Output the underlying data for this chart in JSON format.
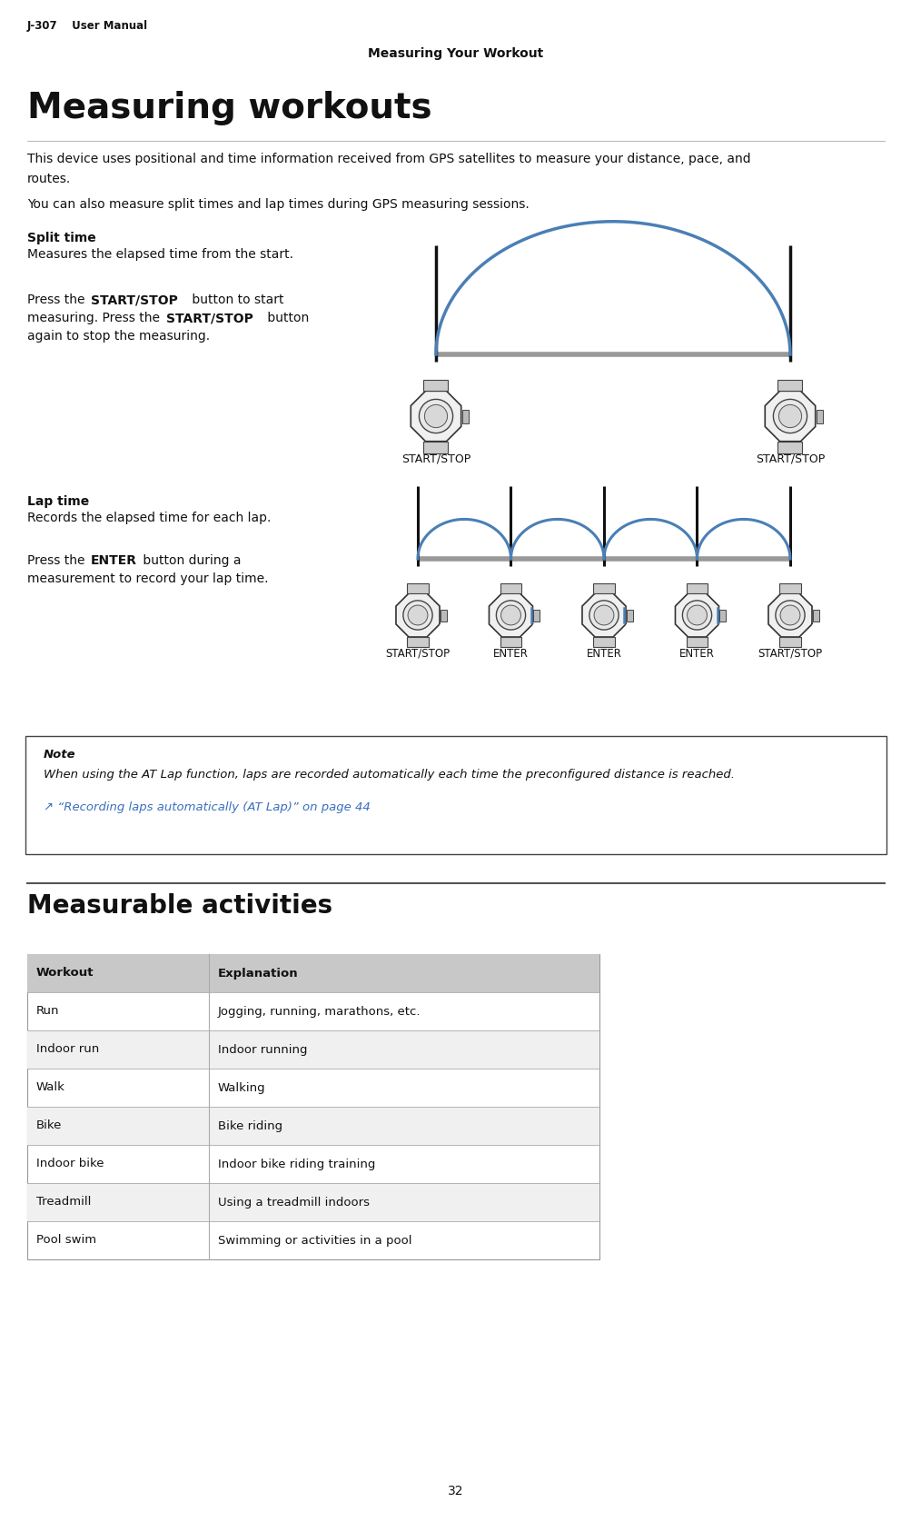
{
  "header_left": "J-307    User Manual",
  "header_center": "Measuring Your Workout",
  "page_title": "Measuring workouts",
  "body_text1": "This device uses positional and time information received from GPS satellites to measure your distance, pace, and",
  "body_text1b": "routes.",
  "body_text2": "You can also measure split times and lap times during GPS measuring sessions.",
  "split_time_heading": "Split time",
  "split_time_desc": "Measures the elapsed time from the start.",
  "split_press1": "Press the ",
  "split_press1b": "START/STOP",
  "split_press1c": " button to start",
  "split_press2": "measuring. Press the ",
  "split_press2b": "START/STOP",
  "split_press2c": " button",
  "split_press3": "again to stop the measuring.",
  "split_labels": [
    "START/STOP",
    "START/STOP"
  ],
  "lap_time_heading": "Lap time",
  "lap_time_desc": "Records the elapsed time for each lap.",
  "lap_press1": "Press the ",
  "lap_press1b": "ENTER",
  "lap_press1c": " button during a",
  "lap_press2": "measurement to record your lap time.",
  "lap_labels": [
    "START/STOP",
    "ENTER",
    "ENTER",
    "ENTER",
    "START/STOP"
  ],
  "note_title": "Note",
  "note_text": "When using the AT Lap function, laps are recorded automatically each time the preconfigured distance is reached.",
  "note_link": "↗ “Recording laps automatically (AT Lap)” on page 44",
  "activities_title": "Measurable activities",
  "table_headers": [
    "Workout",
    "Explanation"
  ],
  "table_rows": [
    [
      "Run",
      "Jogging, running, marathons, etc."
    ],
    [
      "Indoor run",
      "Indoor running"
    ],
    [
      "Walk",
      "Walking"
    ],
    [
      "Bike",
      "Bike riding"
    ],
    [
      "Indoor bike",
      "Indoor bike riding training"
    ],
    [
      "Treadmill",
      "Using a treadmill indoors"
    ],
    [
      "Pool swim",
      "Swimming or activities in a pool"
    ]
  ],
  "footer_text": "32",
  "arc_color": "#4a7fb5",
  "timeline_color": "#999999",
  "tick_color": "#111111",
  "table_header_bg": "#c8c8c8",
  "table_row_bg_alt": "#f0f0f0",
  "note_border": "#444444",
  "link_color": "#3a6fbf",
  "text_color": "#111111",
  "bg_color": "#ffffff"
}
